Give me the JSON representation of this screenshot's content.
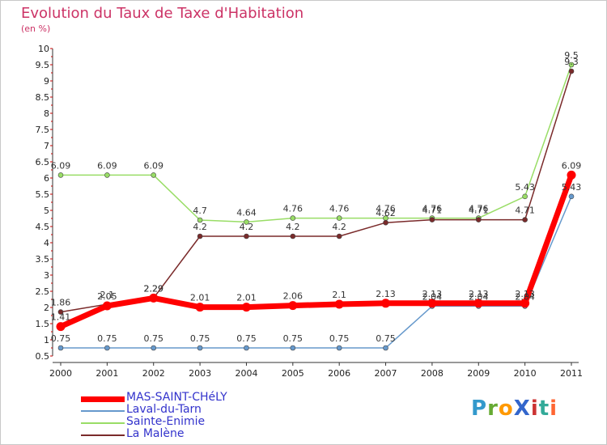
{
  "title": "Evolution du Taux de Taxe d'Habitation",
  "subtitle": "(en %)",
  "logo": {
    "text": "ProXiti",
    "colors": [
      "#3399cc",
      "#66aa33",
      "#ff9900",
      "#3366cc",
      "#cc3333",
      "#33aa99",
      "#ff6633"
    ]
  },
  "chart_data": {
    "type": "line",
    "x": [
      "2000",
      "2001",
      "2002",
      "2003",
      "2004",
      "2005",
      "2006",
      "2007",
      "2008",
      "2009",
      "2010",
      "2011"
    ],
    "yticks": [
      "0.5",
      "1",
      "1.5",
      "2",
      "2.5",
      "3",
      "3.5",
      "4",
      "4.5",
      "5",
      "5.5",
      "6",
      "6.5",
      "7",
      "7.5",
      "8",
      "8.5",
      "9",
      "9.5",
      "10"
    ],
    "ylim": [
      0.5,
      10
    ],
    "grid": false,
    "legend_position": "bottom-left",
    "series": [
      {
        "name": "MAS-SAINT-CHéLY",
        "color": "#ff0000",
        "values": [
          1.41,
          2.05,
          2.29,
          2.01,
          2.01,
          2.06,
          2.1,
          2.13,
          2.13,
          2.13,
          2.13,
          6.09
        ],
        "labels": [
          "1.41",
          "2.05",
          "2.29",
          "2.01",
          "2.01",
          "2.06",
          "2.1",
          "2.13",
          "2.13",
          "2.13",
          "2.13",
          "6.09"
        ]
      },
      {
        "name": "Laval-du-Tarn",
        "color": "#6699cc",
        "values": [
          0.75,
          0.75,
          0.75,
          0.75,
          0.75,
          0.75,
          0.75,
          0.75,
          2.04,
          2.04,
          2.04,
          5.43
        ],
        "labels": [
          "0.75",
          "0.75",
          "0.75",
          "0.75",
          "0.75",
          "0.75",
          "0.75",
          "0.75",
          "2.04",
          "2.04",
          "2.04",
          "5.43"
        ]
      },
      {
        "name": "Sainte-Enimie",
        "color": "#99dd66",
        "values": [
          6.09,
          6.09,
          6.09,
          4.7,
          4.64,
          4.76,
          4.76,
          4.76,
          4.76,
          4.76,
          5.43,
          9.5
        ],
        "labels": [
          "6.09",
          "6.09",
          "6.09",
          "4.7",
          "4.64",
          "4.76",
          "4.76",
          "4.76",
          "4.76",
          "4.76",
          "5.43",
          "9.5"
        ]
      },
      {
        "name": "La Malène",
        "color": "#7a2a2a",
        "values": [
          1.86,
          2.1,
          2.29,
          4.2,
          4.2,
          4.2,
          4.2,
          4.62,
          4.71,
          4.71,
          4.71,
          9.3
        ],
        "labels": [
          "1.86",
          "2.1",
          "2.29",
          "4.2",
          "4.2",
          "4.2",
          "4.2",
          "4.62",
          "4.71",
          "4.71",
          "4.71",
          "9.3"
        ]
      }
    ]
  }
}
